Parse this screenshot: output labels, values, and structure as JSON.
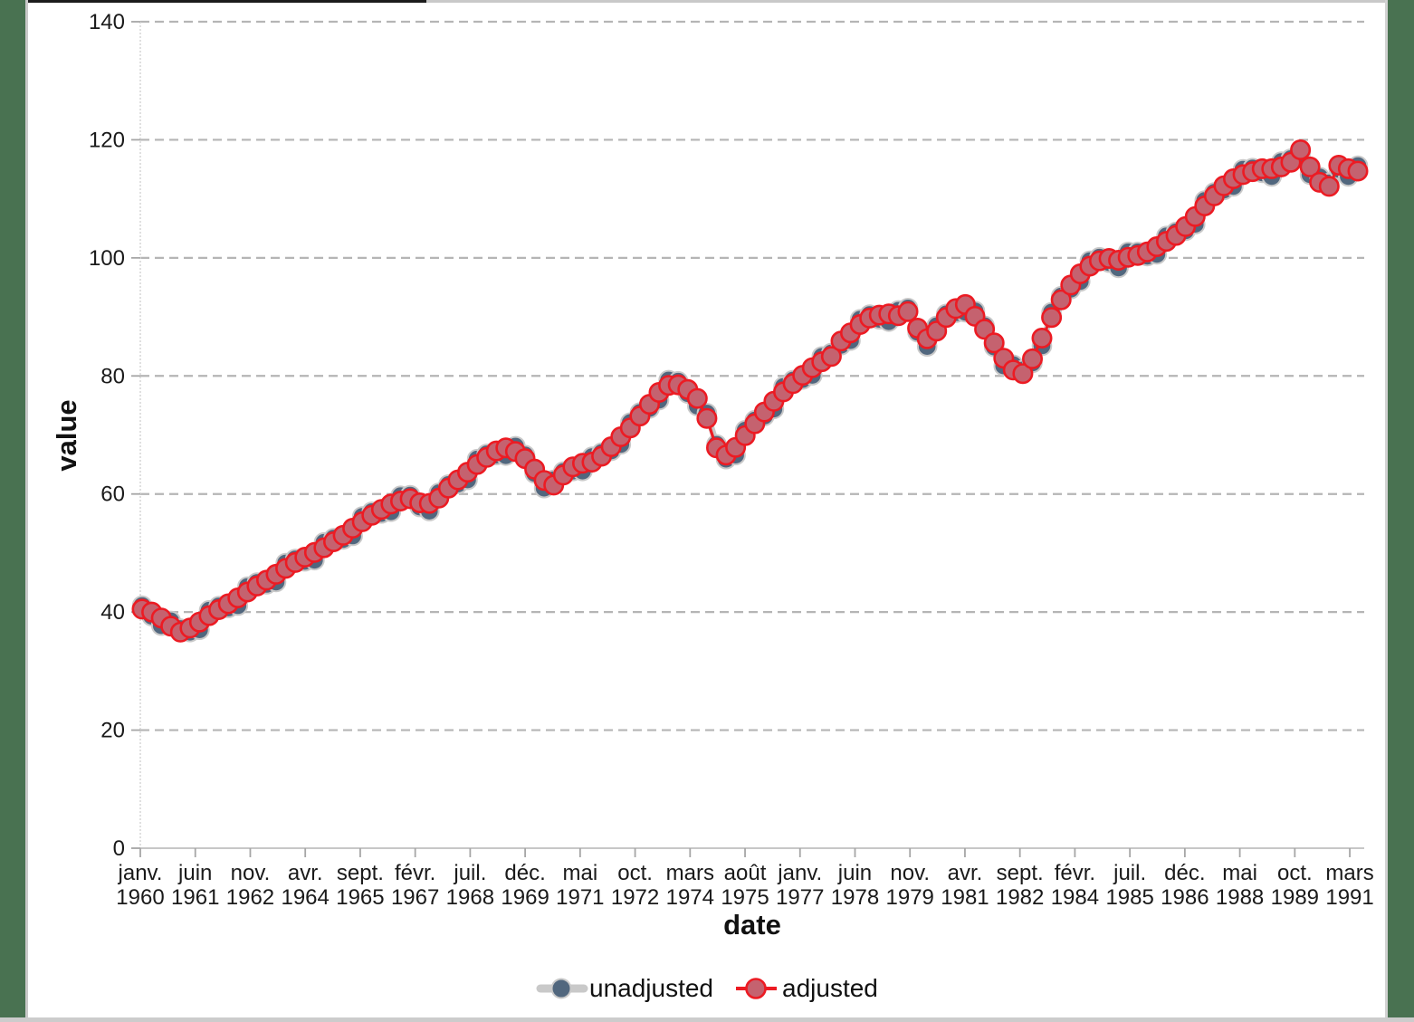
{
  "page": {
    "background_color": "#ffffff",
    "side_band_color": "#497251",
    "top_bar_color": "#c9c9c9",
    "top_bar_dark_segment_color": "#1b1b1b",
    "bottom_bar_color": "#cccccc"
  },
  "chart_data": {
    "type": "line",
    "title": "",
    "xlabel": "date",
    "ylabel": "value",
    "ylim": [
      0,
      140
    ],
    "grid": "horizontal-dashed",
    "gridline_color": "#b5b5b5",
    "axis_line_color": "#bfbfbf",
    "tick_color": "#a6a6a6",
    "label_color": "#1a1a1a",
    "legend_position": "bottom",
    "frequency": "quarterly",
    "start_period": "1960Q1",
    "end_period": "1991Q4",
    "y_ticks": [
      "0",
      "20",
      "40",
      "60",
      "80",
      "100",
      "120",
      "140"
    ],
    "x_tick_labels": [
      [
        "janv.",
        "1960"
      ],
      [
        "juin",
        "1961"
      ],
      [
        "nov.",
        "1962"
      ],
      [
        "avr.",
        "1964"
      ],
      [
        "sept.",
        "1965"
      ],
      [
        "févr.",
        "1967"
      ],
      [
        "juil.",
        "1968"
      ],
      [
        "déc.",
        "1969"
      ],
      [
        "mai",
        "1971"
      ],
      [
        "oct.",
        "1972"
      ],
      [
        "mars",
        "1974"
      ],
      [
        "août",
        "1975"
      ],
      [
        "janv.",
        "1977"
      ],
      [
        "juin",
        "1978"
      ],
      [
        "nov.",
        "1979"
      ],
      [
        "avr.",
        "1981"
      ],
      [
        "sept.",
        "1982"
      ],
      [
        "févr.",
        "1984"
      ],
      [
        "juil.",
        "1985"
      ],
      [
        "déc.",
        "1986"
      ],
      [
        "mai",
        "1988"
      ],
      [
        "oct.",
        "1989"
      ],
      [
        "mars",
        "1991"
      ]
    ],
    "series": [
      {
        "name": "unadjusted",
        "line_color": "#c9c9c9",
        "marker_fill": "#51677e",
        "marker_stroke": "#c9c9c9",
        "values": [
          41.1,
          39.3,
          37.7,
          38.5,
          37.2,
          36.6,
          37.0,
          40.3,
          41.0,
          40.7,
          41.1,
          44.3,
          45.0,
          44.7,
          45.1,
          48.3,
          49.0,
          48.6,
          48.8,
          51.8,
          52.5,
          52.3,
          52.9,
          56.2,
          57.0,
          56.7,
          57.0,
          59.7,
          59.8,
          57.8,
          57.1,
          60.2,
          61.6,
          61.7,
          62.4,
          65.9,
          66.8,
          66.6,
          66.5,
          68.1,
          66.6,
          63.5,
          61.0,
          62.4,
          63.8,
          63.9,
          63.9,
          66.3,
          67.0,
          67.3,
          68.4,
          72.1,
          73.8,
          74.5,
          75.9,
          79.3,
          79.1,
          77.0,
          74.9,
          73.7,
          68.4,
          65.9,
          66.6,
          70.8,
          72.5,
          73.2,
          74.4,
          78.2,
          79.3,
          79.4,
          80.1,
          83.3,
          83.9,
          85.2,
          86.0,
          89.6,
          90.4,
          89.6,
          89.2,
          91.1,
          91.5,
          87.4,
          85.0,
          88.5,
          90.5,
          90.7,
          90.8,
          91.0,
          88.5,
          84.9,
          81.7,
          81.9,
          81.0,
          82.2,
          85.1,
          90.8,
          93.5,
          94.7,
          96.0,
          99.5,
          100.1,
          99.2,
          98.3,
          101.0,
          101.0,
          100.3,
          100.6,
          103.7,
          104.4,
          104.6,
          105.7,
          109.7,
          111.1,
          111.5,
          112.1,
          115.0,
          115.2,
          114.4,
          113.8,
          116.3,
          116.8,
          117.6,
          114.1,
          113.7,
          112.7,
          115.0,
          113.8,
          115.6
        ]
      },
      {
        "name": "adjusted",
        "line_color": "#ec1b23",
        "marker_fill": "#c5626f",
        "marker_stroke": "#ec1b23",
        "values": [
          40.5,
          40.0,
          39.0,
          37.6,
          36.6,
          37.3,
          38.3,
          39.4,
          40.4,
          41.4,
          42.4,
          43.4,
          44.4,
          45.4,
          46.4,
          47.4,
          48.4,
          49.3,
          50.1,
          50.9,
          51.9,
          53.0,
          54.2,
          55.3,
          56.4,
          57.4,
          58.3,
          58.8,
          59.2,
          58.5,
          58.4,
          59.3,
          61.0,
          62.4,
          63.7,
          65.0,
          66.2,
          67.3,
          67.8,
          67.2,
          66.0,
          64.2,
          62.3,
          61.5,
          63.2,
          64.6,
          65.2,
          65.4,
          66.4,
          68.0,
          69.7,
          71.2,
          73.2,
          75.2,
          77.2,
          78.4,
          78.5,
          77.7,
          76.2,
          72.8,
          67.8,
          66.6,
          67.9,
          69.9,
          71.9,
          73.9,
          75.7,
          77.3,
          78.7,
          80.1,
          81.4,
          82.4,
          83.3,
          85.9,
          87.3,
          88.7,
          89.8,
          90.3,
          90.5,
          90.2,
          90.9,
          88.1,
          86.3,
          87.6,
          89.9,
          91.4,
          92.1,
          90.1,
          87.9,
          85.6,
          83.0,
          81.0,
          80.4,
          82.9,
          86.4,
          89.9,
          92.9,
          95.4,
          97.3,
          98.6,
          99.5,
          99.9,
          99.6,
          100.1,
          100.4,
          101.0,
          101.9,
          102.8,
          103.8,
          105.3,
          107.0,
          108.8,
          110.5,
          112.2,
          113.4,
          114.1,
          114.6,
          115.1,
          115.1,
          115.4,
          116.2,
          118.3,
          115.4,
          112.8,
          112.1,
          115.7,
          115.1,
          114.7
        ]
      }
    ],
    "legend": [
      {
        "label": "unadjusted"
      },
      {
        "label": "adjusted"
      }
    ]
  }
}
